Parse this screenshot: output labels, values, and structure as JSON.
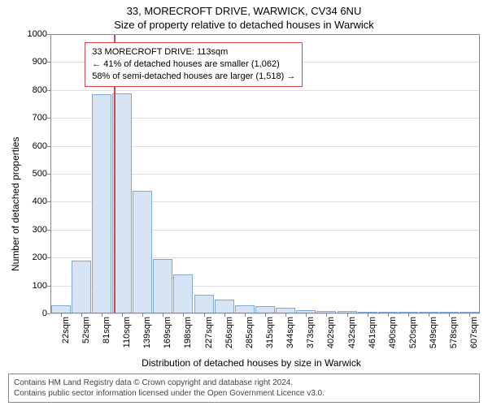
{
  "title_main": "33, MORECROFT DRIVE, WARWICK, CV34 6NU",
  "title_sub": "Size of property relative to detached houses in Warwick",
  "y_axis_label": "Number of detached properties",
  "x_axis_label": "Distribution of detached houses by size in Warwick",
  "chart": {
    "type": "histogram",
    "background_color": "#ffffff",
    "grid_color": "rgba(0,0,0,0.12)",
    "border_color": "#888888",
    "bar_fill": "#d7e4f4",
    "bar_stroke": "#7fa8d9",
    "marker_color": "#d94545",
    "ylim": [
      0,
      1000
    ],
    "ytick_step": 100,
    "x_labels": [
      "22sqm",
      "52sqm",
      "81sqm",
      "110sqm",
      "139sqm",
      "169sqm",
      "198sqm",
      "227sqm",
      "256sqm",
      "285sqm",
      "315sqm",
      "344sqm",
      "373sqm",
      "402sqm",
      "432sqm",
      "461sqm",
      "490sqm",
      "520sqm",
      "549sqm",
      "578sqm",
      "607sqm"
    ],
    "values": [
      30,
      190,
      785,
      787,
      440,
      195,
      140,
      68,
      50,
      30,
      25,
      20,
      12,
      10,
      8,
      5,
      5,
      3,
      3,
      2,
      2
    ],
    "marker_x_index": 3.1,
    "bar_gap_ratio": 0.05,
    "label_fontsize": 11,
    "title_fontsize": 13
  },
  "annotation": {
    "line1": "33 MORECROFT DRIVE: 113sqm",
    "line2": "← 41% of detached houses are smaller (1,062)",
    "line3": "58% of semi-detached houses are larger (1,518) →"
  },
  "footer": {
    "line1": "Contains HM Land Registry data © Crown copyright and database right 2024.",
    "line2": "Contains public sector information licensed under the Open Government Licence v3.0."
  }
}
